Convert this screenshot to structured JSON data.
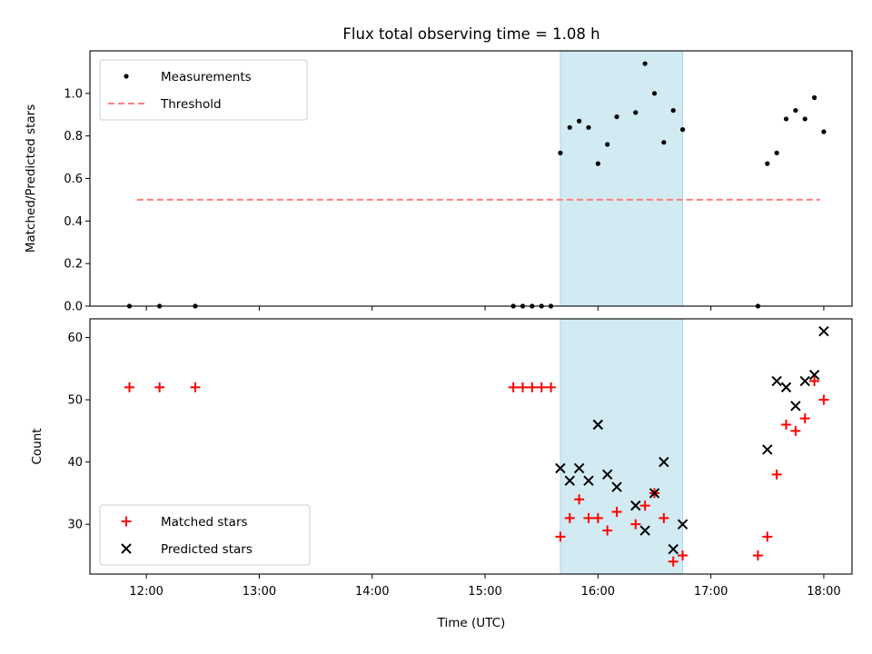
{
  "chart_data": {
    "title": "Flux total observing time = 1.08 h",
    "xlabel": "Time (UTC)",
    "x_ticks": [
      "12:00",
      "13:00",
      "14:00",
      "15:00",
      "16:00",
      "17:00",
      "18:00"
    ],
    "shaded_span": {
      "from": "15:40",
      "to": "16:45",
      "color": "#add8e6"
    },
    "panels": [
      {
        "type": "scatter",
        "ylabel": "Matched/Predicted stars",
        "ylim": [
          0,
          1.2
        ],
        "y_ticks": [
          "0.0",
          "0.2",
          "0.4",
          "0.6",
          "0.8",
          "1.0"
        ],
        "y_tick_values": [
          0,
          0.2,
          0.4,
          0.6,
          0.8,
          1.0
        ],
        "legend": {
          "position": "upper left",
          "entries": [
            "Measurements",
            "Threshold"
          ]
        },
        "series": [
          {
            "name": "Measurements",
            "marker": "dot",
            "color": "#000000",
            "x": [
              "11:51",
              "12:07",
              "12:26",
              "15:15",
              "15:20",
              "15:25",
              "15:30",
              "15:35",
              "15:40",
              "15:45",
              "15:50",
              "15:55",
              "16:00",
              "16:05",
              "16:10",
              "16:20",
              "16:25",
              "16:30",
              "16:35",
              "16:40",
              "16:45",
              "17:25",
              "17:30",
              "17:35",
              "17:40",
              "17:45",
              "17:50",
              "17:55",
              "18:00"
            ],
            "y": [
              0,
              0,
              0,
              0,
              0,
              0,
              0,
              0,
              0.72,
              0.84,
              0.87,
              0.84,
              0.67,
              0.76,
              0.89,
              0.91,
              1.14,
              1.0,
              0.77,
              0.92,
              0.83,
              0,
              0.67,
              0.72,
              0.88,
              0.92,
              0.88,
              0.98,
              0.82
            ]
          },
          {
            "name": "Threshold",
            "style": "dashed-line",
            "color": "#ff7f7f",
            "x": [
              "11:55",
              "17:58"
            ],
            "y": [
              0.5,
              0.5
            ]
          }
        ]
      },
      {
        "type": "scatter",
        "ylabel": "Count",
        "ylim": [
          22,
          63
        ],
        "y_ticks": [
          "30",
          "40",
          "50",
          "60"
        ],
        "y_tick_values": [
          30,
          40,
          50,
          60
        ],
        "legend": {
          "position": "lower left",
          "entries": [
            "Matched stars",
            "Predicted stars"
          ]
        },
        "series": [
          {
            "name": "Matched stars",
            "marker": "plus",
            "color": "#ff0000",
            "x": [
              "11:51",
              "12:07",
              "12:26",
              "15:15",
              "15:20",
              "15:25",
              "15:30",
              "15:35",
              "15:40",
              "15:45",
              "15:50",
              "15:55",
              "16:00",
              "16:05",
              "16:10",
              "16:20",
              "16:25",
              "16:30",
              "16:35",
              "16:40",
              "16:45",
              "17:25",
              "17:30",
              "17:35",
              "17:40",
              "17:45",
              "17:50",
              "17:55",
              "18:00"
            ],
            "y": [
              52,
              52,
              52,
              52,
              52,
              52,
              52,
              52,
              28,
              31,
              34,
              31,
              31,
              29,
              32,
              30,
              33,
              35,
              31,
              24,
              25,
              25,
              28,
              38,
              46,
              45,
              47,
              53,
              50
            ]
          },
          {
            "name": "Predicted stars",
            "marker": "x",
            "color": "#000000",
            "x": [
              "15:40",
              "15:45",
              "15:50",
              "15:55",
              "16:00",
              "16:05",
              "16:10",
              "16:20",
              "16:25",
              "16:30",
              "16:35",
              "16:40",
              "16:45",
              "17:30",
              "17:35",
              "17:40",
              "17:45",
              "17:50",
              "17:55",
              "18:00"
            ],
            "y": [
              39,
              37,
              39,
              37,
              46,
              38,
              36,
              33,
              29,
              35,
              40,
              26,
              30,
              42,
              53,
              52,
              49,
              53,
              54,
              61
            ]
          }
        ]
      }
    ]
  }
}
